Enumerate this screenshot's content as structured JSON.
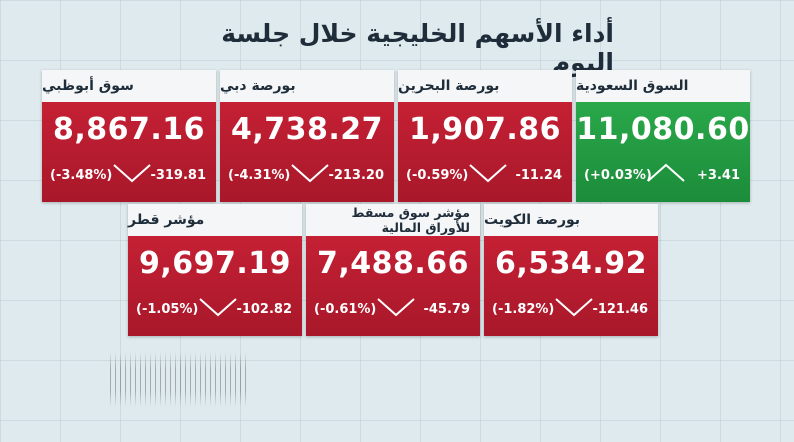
{
  "title": "أداء الأسهم الخليجية خلال جلسة اليوم",
  "colors": {
    "down": "#b81c2e",
    "up": "#24a044",
    "header_bg": "#f4f6f7"
  },
  "markets": [
    {
      "name": "سوق أبوظبي",
      "value": "8,867.16",
      "change": "-319.81",
      "percent": "(-3.48%)",
      "direction": "down",
      "arrow_icon": "arrow-down-icon"
    },
    {
      "name": "بورصة دبي",
      "value": "4,738.27",
      "change": "-213.20",
      "percent": "(-4.31%)",
      "direction": "down",
      "arrow_icon": "arrow-down-icon"
    },
    {
      "name": "بورصة البحرين",
      "value": "1,907.86",
      "change": "-11.24",
      "percent": "(-0.59%)",
      "direction": "down",
      "arrow_icon": "arrow-down-icon"
    },
    {
      "name": "السوق السعودية",
      "value": "11,080.60",
      "change": "+3.41",
      "percent": "(+0.03%)",
      "direction": "up",
      "arrow_icon": "arrow-up-icon"
    },
    {
      "name": "مؤشر قطر",
      "value": "9,697.19",
      "change": "-102.82",
      "percent": "(-1.05%)",
      "direction": "down",
      "arrow_icon": "arrow-down-icon"
    },
    {
      "name": "مؤشر سوق مسقط للأوراق المالية",
      "value": "7,488.66",
      "change": "-45.79",
      "percent": "(-0.61%)",
      "direction": "down",
      "arrow_icon": "arrow-down-icon"
    },
    {
      "name": "بورصة الكويت",
      "value": "6,534.92",
      "change": "-121.46",
      "percent": "(-1.82%)",
      "direction": "down",
      "arrow_icon": "arrow-down-icon"
    }
  ]
}
